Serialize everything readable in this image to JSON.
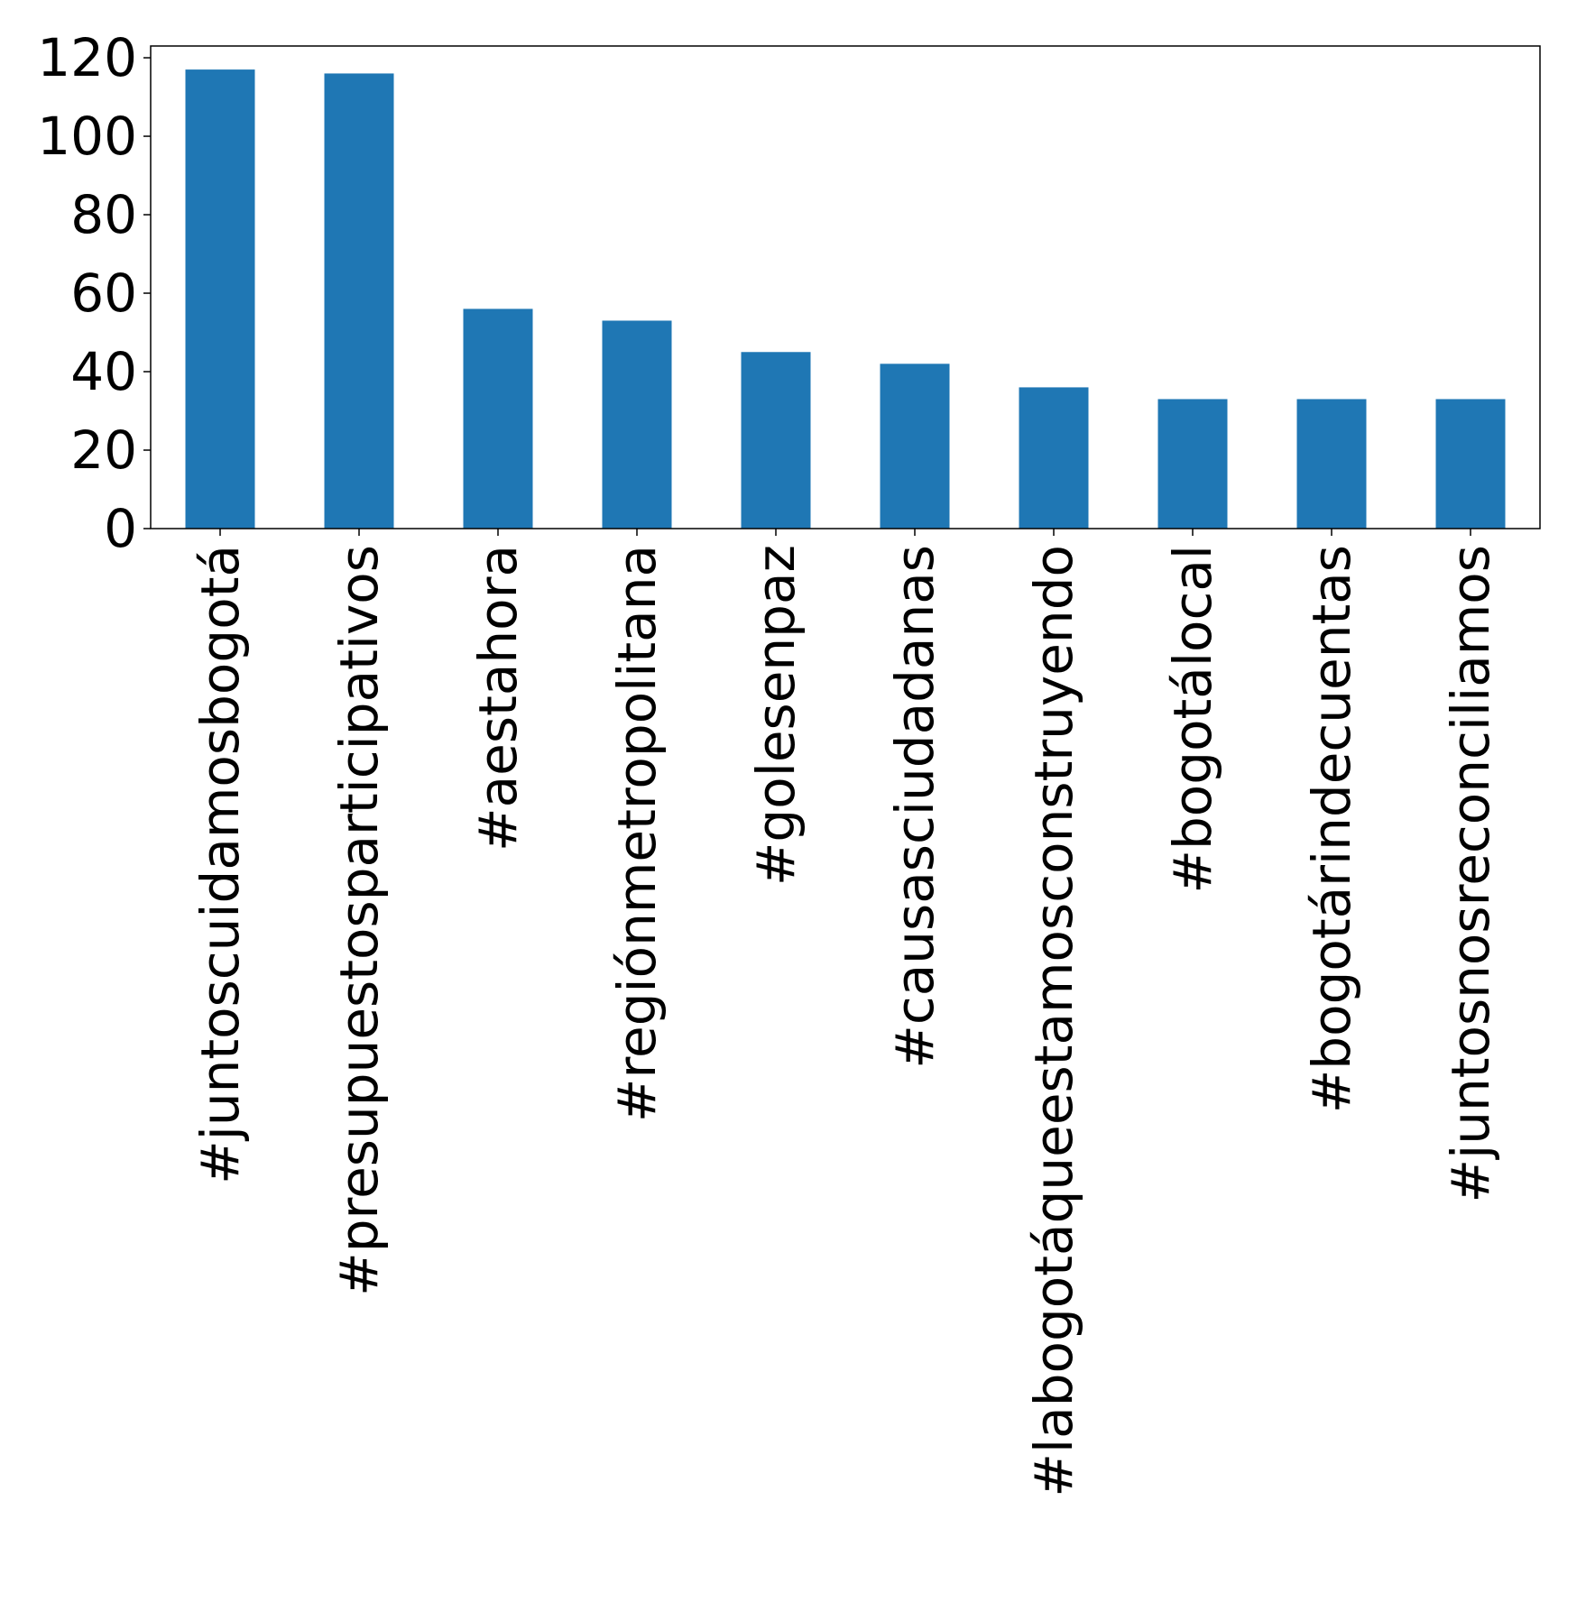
{
  "chart_data": {
    "type": "bar",
    "title": "",
    "xlabel": "",
    "ylabel": "",
    "categories": [
      "#juntoscuidamosbogotá",
      "#presupuestosparticipativos",
      "#aestahora",
      "#regiónmetropolitana",
      "#golesenpaz",
      "#causasciudadanas",
      "#labogotáqueestamosconstruyendo",
      "#bogotálocal",
      "#bogotárindecuentas",
      "#juntosnosreconciliamos"
    ],
    "values": [
      117,
      116,
      56,
      53,
      45,
      42,
      36,
      33,
      33,
      33
    ],
    "ylim": [
      0,
      123
    ],
    "yticks": [
      0,
      20,
      40,
      60,
      80,
      100,
      120
    ],
    "grid": false,
    "legend": "none",
    "bar_color": "#1f77b4"
  }
}
